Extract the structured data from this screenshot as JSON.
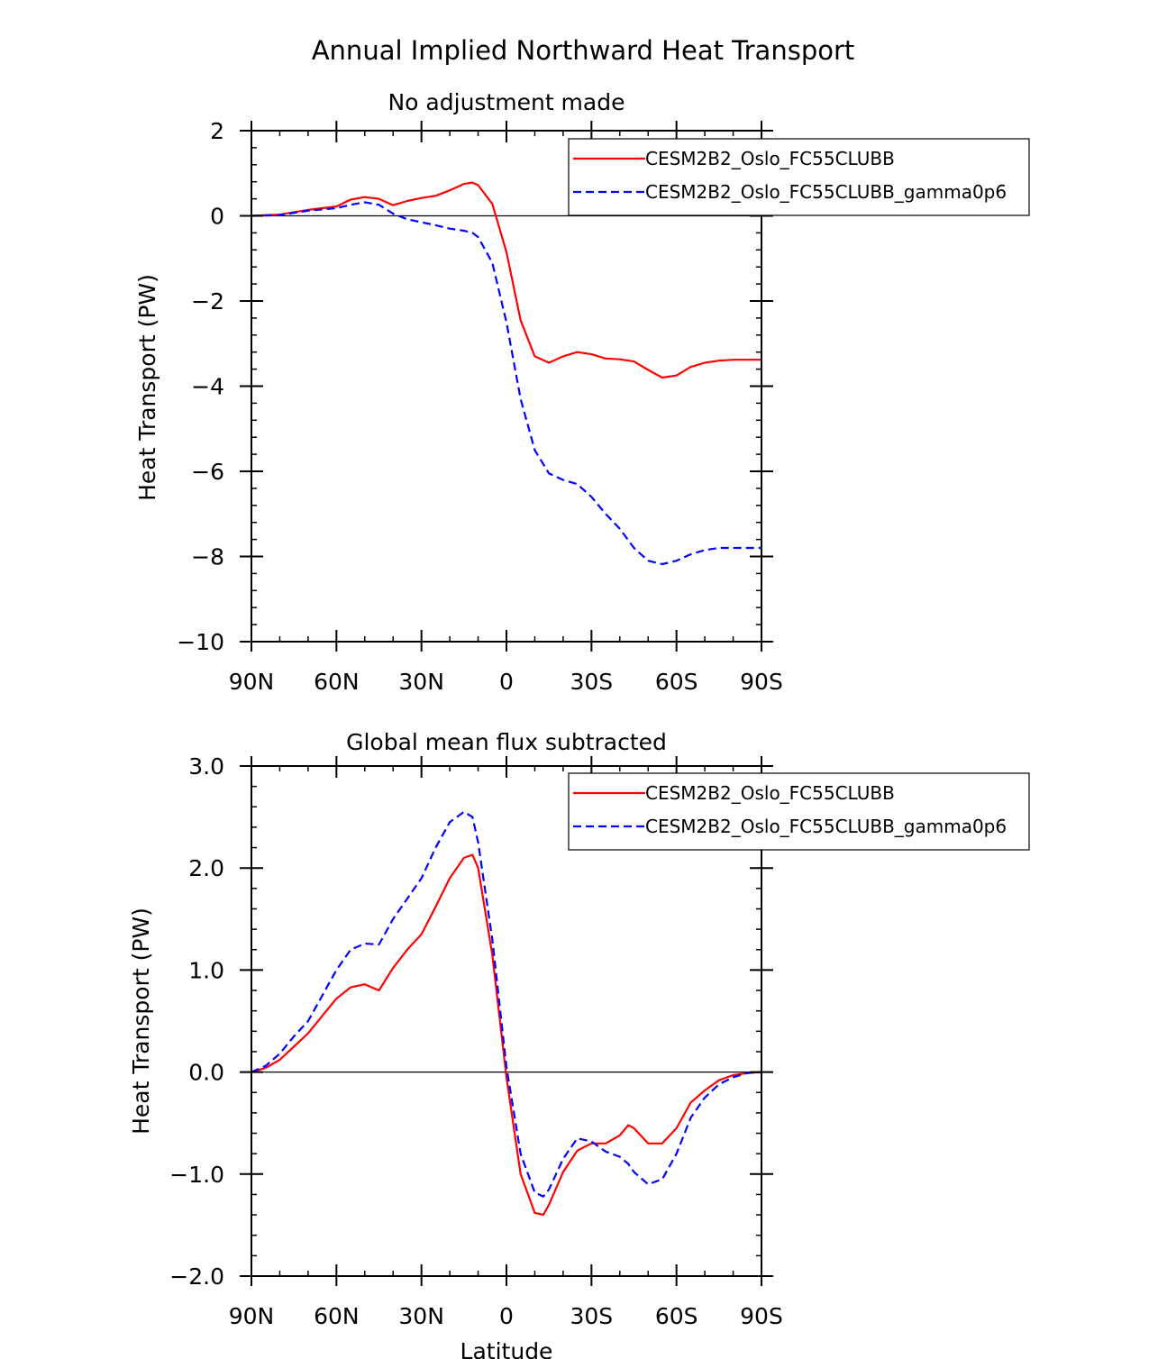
{
  "figure": {
    "title": "Annual Implied Northward Heat Transport"
  },
  "chart_data": [
    {
      "type": "line",
      "title": "No adjustment made",
      "xlabel": "",
      "ylabel": "Heat Transport (PW)",
      "xlim": [
        90,
        -90
      ],
      "ylim": [
        -10,
        2
      ],
      "xticks": [
        {
          "value": 90,
          "label": "90N"
        },
        {
          "value": 60,
          "label": "60N"
        },
        {
          "value": 30,
          "label": "30N"
        },
        {
          "value": 0,
          "label": "0"
        },
        {
          "value": -30,
          "label": "30S"
        },
        {
          "value": -60,
          "label": "60S"
        },
        {
          "value": -90,
          "label": "90S"
        }
      ],
      "yticks": [
        {
          "value": 2,
          "label": "2"
        },
        {
          "value": 0,
          "label": "0"
        },
        {
          "value": -2,
          "label": "−2"
        },
        {
          "value": -4,
          "label": "−4"
        },
        {
          "value": -6,
          "label": "−6"
        },
        {
          "value": -8,
          "label": "−8"
        },
        {
          "value": -10,
          "label": "−10"
        }
      ],
      "yminor_step": 0.4,
      "zero_line": true,
      "legend_position": "top-right",
      "series": [
        {
          "name": "CESM2B2_Oslo_FC55CLUBB",
          "color": "#ff0000",
          "dash": "solid",
          "x": [
            90,
            80,
            70,
            60,
            55,
            50,
            45,
            40,
            35,
            30,
            25,
            20,
            15,
            12,
            10,
            5,
            0,
            -5,
            -10,
            -15,
            -20,
            -25,
            -30,
            -35,
            -40,
            -45,
            -50,
            -55,
            -60,
            -65,
            -70,
            -75,
            -80,
            -85,
            -90
          ],
          "y": [
            0,
            0.03,
            0.14,
            0.22,
            0.38,
            0.44,
            0.4,
            0.25,
            0.35,
            0.42,
            0.47,
            0.6,
            0.75,
            0.78,
            0.72,
            0.28,
            -0.85,
            -2.45,
            -3.3,
            -3.45,
            -3.3,
            -3.2,
            -3.25,
            -3.35,
            -3.37,
            -3.42,
            -3.62,
            -3.8,
            -3.75,
            -3.55,
            -3.45,
            -3.4,
            -3.38,
            -3.38,
            -3.38
          ]
        },
        {
          "name": "CESM2B2_Oslo_FC55CLUBB_gamma0p6",
          "color": "#0000ff",
          "dash": "dashed",
          "x": [
            90,
            80,
            70,
            60,
            55,
            50,
            45,
            40,
            35,
            30,
            25,
            20,
            15,
            12,
            10,
            5,
            0,
            -5,
            -10,
            -15,
            -20,
            -25,
            -30,
            -35,
            -40,
            -45,
            -50,
            -55,
            -60,
            -65,
            -70,
            -75,
            -80,
            -85,
            -90
          ],
          "y": [
            0,
            0.02,
            0.12,
            0.18,
            0.26,
            0.32,
            0.26,
            0.05,
            -0.08,
            -0.15,
            -0.22,
            -0.3,
            -0.35,
            -0.4,
            -0.5,
            -1.1,
            -2.5,
            -4.3,
            -5.5,
            -6.05,
            -6.2,
            -6.3,
            -6.6,
            -7.0,
            -7.35,
            -7.8,
            -8.1,
            -8.18,
            -8.1,
            -7.95,
            -7.85,
            -7.8,
            -7.8,
            -7.8,
            -7.8
          ]
        }
      ]
    },
    {
      "type": "line",
      "title": "Global mean flux subtracted",
      "xlabel": "Latitude",
      "ylabel": "Heat Transport (PW)",
      "xlim": [
        90,
        -90
      ],
      "ylim": [
        -2,
        3
      ],
      "xticks": [
        {
          "value": 90,
          "label": "90N"
        },
        {
          "value": 60,
          "label": "60N"
        },
        {
          "value": 30,
          "label": "30N"
        },
        {
          "value": 0,
          "label": "0"
        },
        {
          "value": -30,
          "label": "30S"
        },
        {
          "value": -60,
          "label": "60S"
        },
        {
          "value": -90,
          "label": "90S"
        }
      ],
      "yticks": [
        {
          "value": 3,
          "label": "3.0"
        },
        {
          "value": 2,
          "label": "2.0"
        },
        {
          "value": 1,
          "label": "1.0"
        },
        {
          "value": 0,
          "label": "0.0"
        },
        {
          "value": -1,
          "label": "−1.0"
        },
        {
          "value": -2,
          "label": "−2.0"
        }
      ],
      "yminor_step": 0.2,
      "zero_line": true,
      "legend_position": "top-right",
      "series": [
        {
          "name": "CESM2B2_Oslo_FC55CLUBB",
          "color": "#ff0000",
          "dash": "solid",
          "x": [
            90,
            85,
            80,
            75,
            70,
            65,
            60,
            55,
            50,
            45,
            40,
            35,
            30,
            25,
            20,
            15,
            12,
            10,
            5,
            0,
            -5,
            -10,
            -13,
            -15,
            -20,
            -25,
            -30,
            -35,
            -40,
            -43,
            -45,
            -50,
            -55,
            -60,
            -65,
            -70,
            -75,
            -80,
            -85,
            -90
          ],
          "y": [
            0,
            0.04,
            0.12,
            0.25,
            0.38,
            0.55,
            0.72,
            0.83,
            0.86,
            0.8,
            1.02,
            1.2,
            1.35,
            1.62,
            1.9,
            2.1,
            2.13,
            2.0,
            1.15,
            -0.05,
            -1.0,
            -1.38,
            -1.4,
            -1.3,
            -0.98,
            -0.77,
            -0.7,
            -0.7,
            -0.62,
            -0.52,
            -0.55,
            -0.7,
            -0.7,
            -0.55,
            -0.3,
            -0.18,
            -0.08,
            -0.03,
            -0.01,
            0
          ]
        },
        {
          "name": "CESM2B2_Oslo_FC55CLUBB_gamma0p6",
          "color": "#0000ff",
          "dash": "dashed",
          "x": [
            90,
            85,
            80,
            75,
            70,
            65,
            60,
            55,
            50,
            45,
            40,
            35,
            30,
            25,
            20,
            15,
            12,
            10,
            5,
            0,
            -5,
            -10,
            -13,
            -15,
            -20,
            -25,
            -30,
            -35,
            -40,
            -43,
            -45,
            -50,
            -55,
            -60,
            -65,
            -70,
            -75,
            -80,
            -85,
            -90
          ],
          "y": [
            0,
            0.06,
            0.18,
            0.35,
            0.5,
            0.75,
            1.0,
            1.2,
            1.26,
            1.25,
            1.5,
            1.7,
            1.9,
            2.2,
            2.45,
            2.55,
            2.5,
            2.25,
            1.3,
            0.05,
            -0.8,
            -1.18,
            -1.22,
            -1.15,
            -0.85,
            -0.65,
            -0.68,
            -0.78,
            -0.83,
            -0.9,
            -0.98,
            -1.1,
            -1.05,
            -0.8,
            -0.45,
            -0.25,
            -0.12,
            -0.05,
            -0.01,
            0
          ]
        }
      ]
    }
  ]
}
